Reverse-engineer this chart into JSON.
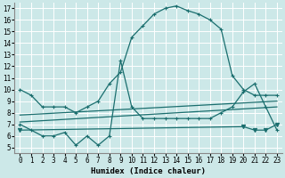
{
  "xlabel": "Humidex (Indice chaleur)",
  "bg_color": "#cce8e8",
  "grid_color": "#ffffff",
  "line_color": "#1a6e6e",
  "xlim": [
    -0.5,
    23.5
  ],
  "ylim": [
    4.5,
    17.5
  ],
  "yticks": [
    5,
    6,
    7,
    8,
    9,
    10,
    11,
    12,
    13,
    14,
    15,
    16,
    17
  ],
  "xticks": [
    0,
    1,
    2,
    3,
    4,
    5,
    6,
    7,
    8,
    9,
    10,
    11,
    12,
    13,
    14,
    15,
    16,
    17,
    18,
    19,
    20,
    21,
    22,
    23
  ],
  "series": [
    {
      "x": [
        0,
        1,
        2,
        3,
        4,
        5,
        6,
        7,
        8,
        9,
        10,
        11,
        12,
        13,
        14,
        15,
        16,
        17,
        18,
        19,
        20,
        21,
        22,
        23
      ],
      "y": [
        10,
        9.5,
        8.5,
        8.5,
        8.5,
        8.0,
        8.5,
        9.0,
        10.5,
        11.5,
        14.5,
        15.5,
        16.5,
        17.0,
        17.2,
        16.8,
        16.5,
        16.0,
        15.2,
        11.2,
        10.0,
        9.5,
        9.5,
        9.5
      ],
      "marker": "+",
      "markersize": 3,
      "lw": 0.9
    },
    {
      "x": [
        0,
        1,
        2,
        3,
        4,
        5,
        6,
        7,
        8,
        9,
        10,
        11,
        12,
        13,
        14,
        15,
        16,
        17,
        18,
        19,
        20,
        21,
        22,
        23
      ],
      "y": [
        7.0,
        6.5,
        6.0,
        6.0,
        6.3,
        5.2,
        6.0,
        5.2,
        6.0,
        12.5,
        8.5,
        7.5,
        7.5,
        7.5,
        7.5,
        7.5,
        7.5,
        7.5,
        8.0,
        8.5,
        9.8,
        10.5,
        8.5,
        6.5
      ],
      "marker": "+",
      "markersize": 3,
      "lw": 0.9
    },
    {
      "x": [
        0,
        23
      ],
      "y": [
        7.8,
        9.0
      ],
      "marker": null,
      "lw": 0.9
    },
    {
      "x": [
        0,
        23
      ],
      "y": [
        7.2,
        8.5
      ],
      "marker": null,
      "lw": 0.9
    },
    {
      "x": [
        0,
        20,
        21,
        22,
        23
      ],
      "y": [
        6.5,
        6.8,
        6.5,
        6.5,
        7.0
      ],
      "marker": "v",
      "markersize": 3,
      "lw": 0.9
    }
  ]
}
